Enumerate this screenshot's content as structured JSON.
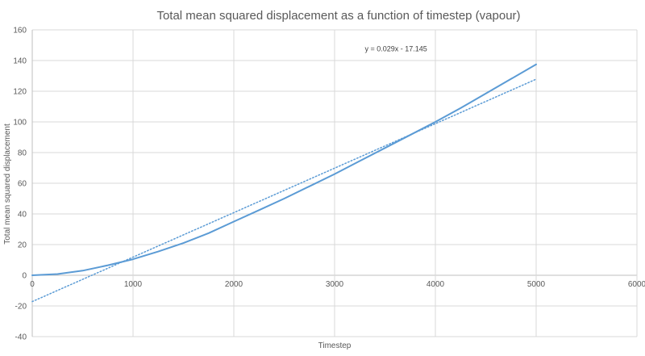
{
  "chart_data": {
    "type": "line",
    "title": "Total mean squared displacement as a function of timestep (vapour)",
    "xlabel": "Timestep",
    "ylabel": "Total mean squared displacement",
    "xlim": [
      0,
      6000
    ],
    "ylim": [
      -40,
      160
    ],
    "xticks": [
      0,
      1000,
      2000,
      3000,
      4000,
      5000,
      6000
    ],
    "yticks": [
      -40,
      -20,
      0,
      20,
      40,
      60,
      80,
      100,
      120,
      140,
      160
    ],
    "grid": true,
    "colors": {
      "series": "#5b9bd5",
      "grid": "#d9d9d9",
      "text": "#595959"
    },
    "series": [
      {
        "style": "solid",
        "x": [
          0,
          250,
          500,
          750,
          1000,
          1250,
          1500,
          1750,
          2000,
          2250,
          2500,
          2750,
          3000,
          3250,
          3500,
          3750,
          4000,
          4250,
          4500,
          4750,
          5000
        ],
        "y": [
          0,
          0.8,
          3,
          6.5,
          10.5,
          15.5,
          21,
          27.5,
          35,
          42.5,
          50,
          58,
          66,
          74.5,
          83,
          91.5,
          100,
          109,
          118.5,
          128,
          137.5
        ]
      },
      {
        "style": "dotted",
        "trendline": {
          "slope": 0.029,
          "intercept": -17.145
        },
        "x": [
          0,
          5000
        ],
        "y": [
          -17.145,
          127.855
        ]
      }
    ],
    "annotations": [
      {
        "text": "y = 0.029x - 17.145",
        "x": 3300,
        "y": 146
      }
    ]
  }
}
